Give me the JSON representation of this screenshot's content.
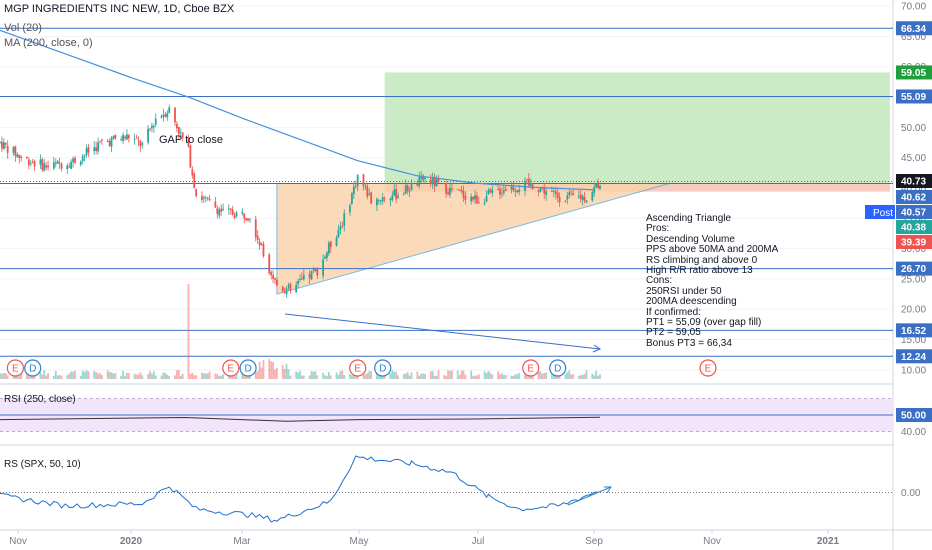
{
  "header": {
    "title": "MGP INGREDIENTS INC NEW, 1D, Cboe BZX",
    "vol": "Vol (20)",
    "ma": "MA (200, close, 0)"
  },
  "annotations": {
    "gap": "GAP to close",
    "post_badge": "Post",
    "analysis": [
      "Ascending Triangle",
      "Pros:",
      "Descending Volume",
      "PPS above 50MA and 200MA",
      "RS climbing and above 0",
      "High R/R ratio above 13",
      "Cons:",
      "250RSI under 50",
      "200MA deescending",
      "If confirmed:",
      "PT1 = 55,09 (over gap fill)",
      "PT2 = 59,05",
      "Bonus PT3 = 66,34"
    ]
  },
  "colors": {
    "up": "#26a69a",
    "down": "#ef5350",
    "level_line": "#3a6fc4",
    "ma_line": "#4a90d9",
    "target_zone": "#b9e4b4",
    "triangle": "#f9d2a8",
    "rsi_band": "#f1e4fb"
  },
  "chart_data": [
    {
      "type": "candlestick",
      "symbol": "MGP INGREDIENTS INC NEW",
      "timeframe": "1D",
      "x_ticks": [
        "Nov",
        "2020",
        "Mar",
        "May",
        "Jul",
        "Sep",
        "Nov",
        "2021"
      ],
      "y_ticks": [
        10,
        15,
        20,
        25,
        30,
        35,
        40,
        45,
        50,
        55,
        60,
        65,
        70
      ],
      "y_tick_labels": [
        "10.00",
        "15.00",
        "20.00",
        "25.00",
        "30.00",
        "35.00",
        "40.00",
        "45.00",
        "50.00",
        "55.00",
        "60.00",
        "65.00",
        "70.00"
      ],
      "ylim": [
        8,
        71
      ],
      "price_path": [
        [
          "2019-10-28",
          47.5
        ],
        [
          "2019-11-08",
          45
        ],
        [
          "2019-11-22",
          43.5
        ],
        [
          "2019-12-06",
          44.5
        ],
        [
          "2019-12-20",
          47.5
        ],
        [
          "2020-01-03",
          48.5
        ],
        [
          "2020-01-10",
          47
        ],
        [
          "2020-01-17",
          51.5
        ],
        [
          "2020-01-24",
          53
        ],
        [
          "2020-02-03",
          46
        ],
        [
          "2020-02-07",
          39
        ],
        [
          "2020-02-21",
          36
        ],
        [
          "2020-03-06",
          35.5
        ],
        [
          "2020-03-13",
          29
        ],
        [
          "2020-03-20",
          24
        ],
        [
          "2020-03-27",
          23
        ],
        [
          "2020-04-10",
          26.5
        ],
        [
          "2020-04-24",
          35
        ],
        [
          "2020-05-01",
          42
        ],
        [
          "2020-05-08",
          38
        ],
        [
          "2020-05-22",
          39
        ],
        [
          "2020-06-05",
          41.5
        ],
        [
          "2020-06-19",
          39.5
        ],
        [
          "2020-07-03",
          38
        ],
        [
          "2020-07-17",
          40
        ],
        [
          "2020-07-31",
          40.5
        ],
        [
          "2020-08-14",
          38.5
        ],
        [
          "2020-08-28",
          38.5
        ],
        [
          "2020-09-04",
          41
        ]
      ],
      "moving_average_200": [
        [
          "2019-10-28",
          66
        ],
        [
          "2019-12-02",
          62
        ],
        [
          "2020-01-06",
          58
        ],
        [
          "2020-02-03",
          55
        ],
        [
          "2020-03-02",
          51.5
        ],
        [
          "2020-04-01",
          48
        ],
        [
          "2020-05-01",
          44.5
        ],
        [
          "2020-06-01",
          42
        ],
        [
          "2020-07-01",
          40.8
        ],
        [
          "2020-08-01",
          40.1
        ],
        [
          "2020-09-01",
          39.7
        ]
      ],
      "horizontal_levels": [
        66.34,
        55.09,
        40.73,
        26.7,
        16.52,
        12.24
      ],
      "price_labels": [
        {
          "value": 66.34,
          "label": "66.34",
          "color": "#3a6fc4"
        },
        {
          "value": 59.05,
          "label": "59.05",
          "color": "#1e9e3c"
        },
        {
          "value": 55.09,
          "label": "55.09",
          "color": "#3a6fc4"
        },
        {
          "value": 40.73,
          "label": "40.73",
          "color": "#131722"
        },
        {
          "value": 40.62,
          "label": "40.62",
          "color": "#3a6fc4"
        },
        {
          "value": 40.57,
          "label": "40.57",
          "color": "#3a6fc4"
        },
        {
          "value": 40.38,
          "label": "40.38",
          "color": "#26a69a"
        },
        {
          "value": 39.39,
          "label": "39.39",
          "color": "#ef5350"
        },
        {
          "value": 26.7,
          "label": "26.70",
          "color": "#3a6fc4"
        },
        {
          "value": 16.52,
          "label": "16.52",
          "color": "#3a6fc4"
        },
        {
          "value": 12.24,
          "label": "12.24",
          "color": "#3a6fc4"
        }
      ],
      "target_zone": {
        "from": 40.73,
        "to": 59.05
      },
      "ascending_triangle": {
        "resistance": 40.73,
        "start_low": 22.5
      },
      "volume_spike": "2020-02-03",
      "events": [
        {
          "date": "2019-11-05",
          "label": "E",
          "kind": "earnings"
        },
        {
          "date": "2019-11-14",
          "label": "D",
          "kind": "dividend"
        },
        {
          "date": "2020-02-25",
          "label": "E",
          "kind": "earnings"
        },
        {
          "date": "2020-03-05",
          "label": "D",
          "kind": "dividend"
        },
        {
          "date": "2020-05-01",
          "label": "E",
          "kind": "earnings"
        },
        {
          "date": "2020-05-14",
          "label": "D",
          "kind": "dividend"
        },
        {
          "date": "2020-07-30",
          "label": "E",
          "kind": "earnings"
        },
        {
          "date": "2020-08-13",
          "label": "D",
          "kind": "dividend"
        },
        {
          "date": "2020-10-29",
          "label": "E",
          "kind": "earnings"
        }
      ]
    },
    {
      "type": "line",
      "title": "RSI (250, close)",
      "y_tick_labels": [
        "50.00",
        "40.00"
      ],
      "ylim": [
        33,
        67
      ],
      "path": [
        [
          "2019-10-28",
          47.2
        ],
        [
          "2020-02-01",
          48.5
        ],
        [
          "2020-03-25",
          46.2
        ],
        [
          "2020-05-01",
          47.2
        ],
        [
          "2020-07-01",
          47.6
        ],
        [
          "2020-09-04",
          48.6
        ]
      ]
    },
    {
      "type": "line",
      "title": "RS (SPX, 50, 10)",
      "y_tick_labels": [
        "0.00"
      ],
      "ylim": [
        -0.32,
        0.4
      ],
      "path": [
        [
          "2019-10-28",
          -0.03
        ],
        [
          "2019-12-01",
          -0.12
        ],
        [
          "2020-01-10",
          -0.1
        ],
        [
          "2020-01-24",
          0.06
        ],
        [
          "2020-02-07",
          -0.15
        ],
        [
          "2020-03-05",
          -0.2
        ],
        [
          "2020-03-20",
          -0.25
        ],
        [
          "2020-04-17",
          -0.08
        ],
        [
          "2020-04-30",
          0.32
        ],
        [
          "2020-05-29",
          0.26
        ],
        [
          "2020-06-19",
          0.18
        ],
        [
          "2020-07-08",
          -0.04
        ],
        [
          "2020-07-24",
          -0.15
        ],
        [
          "2020-08-14",
          -0.12
        ],
        [
          "2020-09-04",
          0.02
        ]
      ]
    }
  ]
}
